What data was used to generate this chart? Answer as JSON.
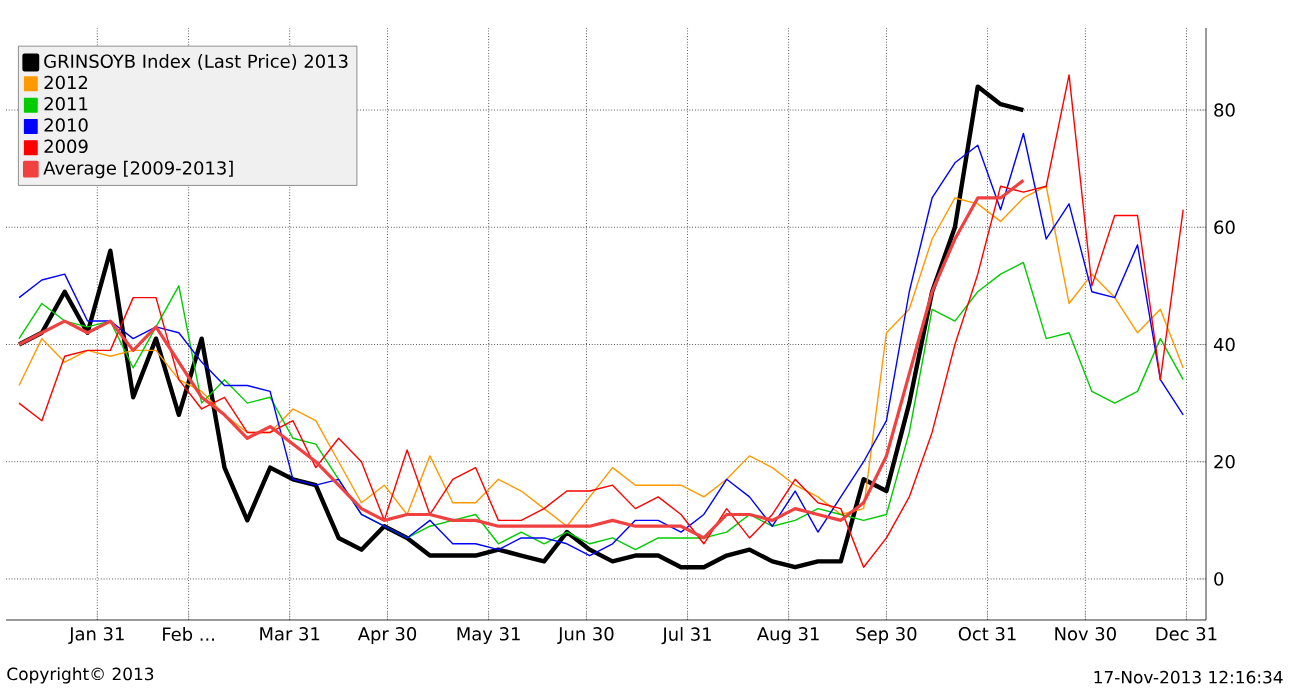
{
  "chart_data": {
    "type": "line",
    "x": [
      "2013-01-07",
      "2013-01-14",
      "2013-01-21",
      "2013-01-28",
      "2013-02-04",
      "2013-02-11",
      "2013-02-18",
      "2013-02-25",
      "2013-03-04",
      "2013-03-11",
      "2013-03-18",
      "2013-03-25",
      "2013-04-01",
      "2013-04-08",
      "2013-04-15",
      "2013-04-22",
      "2013-04-29",
      "2013-05-06",
      "2013-05-13",
      "2013-05-20",
      "2013-05-27",
      "2013-06-03",
      "2013-06-10",
      "2013-06-17",
      "2013-06-24",
      "2013-07-01",
      "2013-07-08",
      "2013-07-15",
      "2013-07-22",
      "2013-07-29",
      "2013-08-05",
      "2013-08-12",
      "2013-08-19",
      "2013-08-26",
      "2013-09-02",
      "2013-09-09",
      "2013-09-16",
      "2013-09-23",
      "2013-09-30",
      "2013-10-07",
      "2013-10-14",
      "2013-10-21",
      "2013-10-28",
      "2013-11-04",
      "2013-11-11",
      "2013-11-18",
      "2013-11-25",
      "2013-12-02",
      "2013-12-09",
      "2013-12-16",
      "2013-12-23",
      "2013-12-30"
    ],
    "series": [
      {
        "name": "GRINSOYB Index (Last Price) 2013",
        "color": "#000000",
        "values": [
          40,
          42,
          49,
          42,
          56,
          31,
          41,
          28,
          41,
          19,
          10,
          19,
          17,
          16,
          7,
          5,
          9,
          7,
          4,
          4,
          4,
          5,
          4,
          3,
          8,
          5,
          3,
          4,
          4,
          2,
          2,
          4,
          5,
          3,
          2,
          3,
          3,
          17,
          15,
          30,
          49,
          60,
          84,
          81,
          80,
          null,
          null,
          null,
          null,
          null,
          null,
          null
        ]
      },
      {
        "name": "2012",
        "color": "#ff9900",
        "values": [
          33,
          41,
          37,
          39,
          38,
          39,
          39,
          34,
          32,
          28,
          25,
          25,
          29,
          27,
          20,
          13,
          16,
          11,
          21,
          13,
          13,
          17,
          15,
          12,
          9,
          14,
          19,
          16,
          16,
          16,
          14,
          17,
          21,
          19,
          16,
          14,
          11,
          12,
          42,
          46,
          58,
          65,
          64,
          61,
          65,
          67,
          47,
          52,
          48,
          42,
          46,
          36
        ]
      },
      {
        "name": "2011",
        "color": "#00cc00",
        "values": [
          41,
          47,
          44,
          43,
          44,
          36,
          43,
          50,
          30,
          34,
          30,
          31,
          24,
          23,
          17,
          11,
          9,
          7,
          9,
          10,
          11,
          6,
          8,
          6,
          8,
          6,
          7,
          5,
          7,
          7,
          7,
          8,
          11,
          9,
          10,
          12,
          11,
          10,
          11,
          25,
          46,
          44,
          49,
          52,
          54,
          41,
          42,
          32,
          30,
          32,
          41,
          34
        ]
      },
      {
        "name": "2010",
        "color": "#0000ff",
        "values": [
          48,
          51,
          52,
          44,
          44,
          41,
          43,
          42,
          37,
          33,
          33,
          32,
          17,
          16,
          17,
          11,
          9,
          7,
          10,
          6,
          6,
          5,
          7,
          7,
          6,
          4,
          6,
          10,
          10,
          8,
          11,
          17,
          14,
          9,
          15,
          8,
          14,
          20,
          27,
          49,
          65,
          71,
          74,
          63,
          76,
          58,
          64,
          49,
          48,
          57,
          34,
          28
        ]
      },
      {
        "name": "2009",
        "color": "#ff0000",
        "values": [
          30,
          27,
          38,
          39,
          39,
          48,
          48,
          34,
          29,
          31,
          25,
          25,
          27,
          19,
          24,
          20,
          10,
          22,
          11,
          17,
          19,
          10,
          10,
          12,
          15,
          15,
          16,
          12,
          14,
          11,
          6,
          12,
          7,
          11,
          17,
          13,
          12,
          2,
          7,
          14,
          25,
          40,
          52,
          67,
          66,
          67,
          86,
          50,
          62,
          62,
          34,
          63
        ]
      },
      {
        "name": "Average [2009-2013]",
        "color": "#f04040",
        "values": [
          40,
          42,
          44,
          42,
          44,
          39,
          43,
          37,
          31,
          28,
          24,
          26,
          23,
          20,
          16,
          12,
          10,
          11,
          11,
          10,
          10,
          9,
          9,
          9,
          9,
          9,
          10,
          9,
          9,
          9,
          7,
          11,
          11,
          10,
          12,
          11,
          10,
          13,
          21,
          35,
          49,
          58,
          65,
          65,
          68,
          null,
          null,
          null,
          null,
          null,
          null,
          null
        ]
      }
    ],
    "xlim": [
      "2013-01-03",
      "2014-01-06"
    ],
    "xticks": [
      {
        "value": "2013-01-31",
        "label": "Jan 31"
      },
      {
        "value": "2013-02-28",
        "label": "Feb ..."
      },
      {
        "value": "2013-03-31",
        "label": "Mar 31"
      },
      {
        "value": "2013-04-30",
        "label": "Apr 30"
      },
      {
        "value": "2013-05-31",
        "label": "May 31"
      },
      {
        "value": "2013-06-30",
        "label": "Jun 30"
      },
      {
        "value": "2013-07-31",
        "label": "Jul 31"
      },
      {
        "value": "2013-08-31",
        "label": "Aug 31"
      },
      {
        "value": "2013-09-30",
        "label": "Sep 30"
      },
      {
        "value": "2013-10-31",
        "label": "Oct 31"
      },
      {
        "value": "2013-11-30",
        "label": "Nov 30"
      },
      {
        "value": "2013-12-31",
        "label": "Dec 31"
      }
    ],
    "ylim": [
      -7,
      94
    ],
    "yticks": [
      0,
      20,
      40,
      60,
      80
    ],
    "grid": true,
    "legend": "top left",
    "marker": "none",
    "line_style": "solid",
    "annotations": [
      "Copyright© 2013",
      "17-Nov-2013 12:16:34"
    ]
  }
}
